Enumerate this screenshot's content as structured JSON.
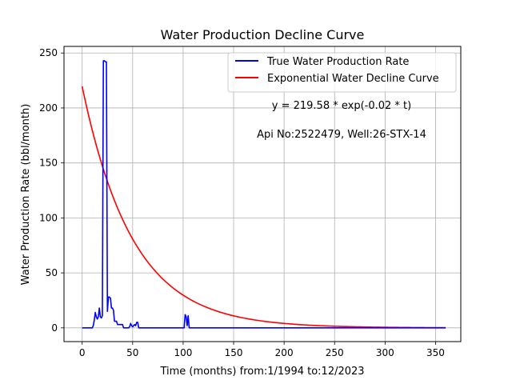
{
  "chart_data": {
    "type": "line",
    "title": "Water Production Decline Curve",
    "xlabel": "Time (months) from:1/1994 to:12/2023",
    "ylabel": "Water Production Rate (bbl/month)",
    "xlim": [
      -18,
      375
    ],
    "ylim": [
      -12.5,
      256
    ],
    "xticks": [
      0,
      50,
      100,
      150,
      200,
      250,
      300,
      350
    ],
    "yticks": [
      0,
      50,
      100,
      150,
      200,
      250
    ],
    "grid": true,
    "legend_position": "top-right",
    "annotations": [
      "y = 219.58 * exp(-0.02 * t)",
      "Api No:2522479, Well:26-STX-14"
    ],
    "series": [
      {
        "name": "True Water Production Rate",
        "color": "#0000ff",
        "x": [
          0,
          10,
          11,
          12,
          13,
          14,
          15,
          16,
          17,
          18,
          19,
          20,
          21,
          22,
          23,
          24,
          25,
          26,
          27,
          28,
          29,
          30,
          31,
          32,
          33,
          34,
          35,
          36,
          37,
          38,
          40,
          41,
          42,
          45,
          46,
          47,
          48,
          49,
          50,
          51,
          52,
          53,
          54,
          55,
          56,
          57,
          58,
          100,
          101,
          102,
          103,
          104,
          105,
          106,
          360
        ],
        "y": [
          0,
          0,
          2,
          7,
          14,
          10,
          8,
          10,
          18,
          10,
          9,
          11,
          243,
          243,
          242,
          242,
          15,
          28,
          28,
          27,
          18,
          18,
          16,
          6,
          6,
          6,
          3,
          3,
          3,
          3,
          3,
          0,
          0,
          0,
          0,
          1,
          4,
          2,
          1,
          2,
          3,
          2,
          5,
          5,
          0,
          0,
          0,
          0,
          0,
          12,
          10,
          2,
          11,
          0,
          0
        ]
      },
      {
        "name": "Exponential Water Decline Curve",
        "color": "#ff0000",
        "fit": {
          "a": 219.58,
          "b": 0.02,
          "x_start": 0,
          "x_end": 360
        }
      }
    ]
  }
}
